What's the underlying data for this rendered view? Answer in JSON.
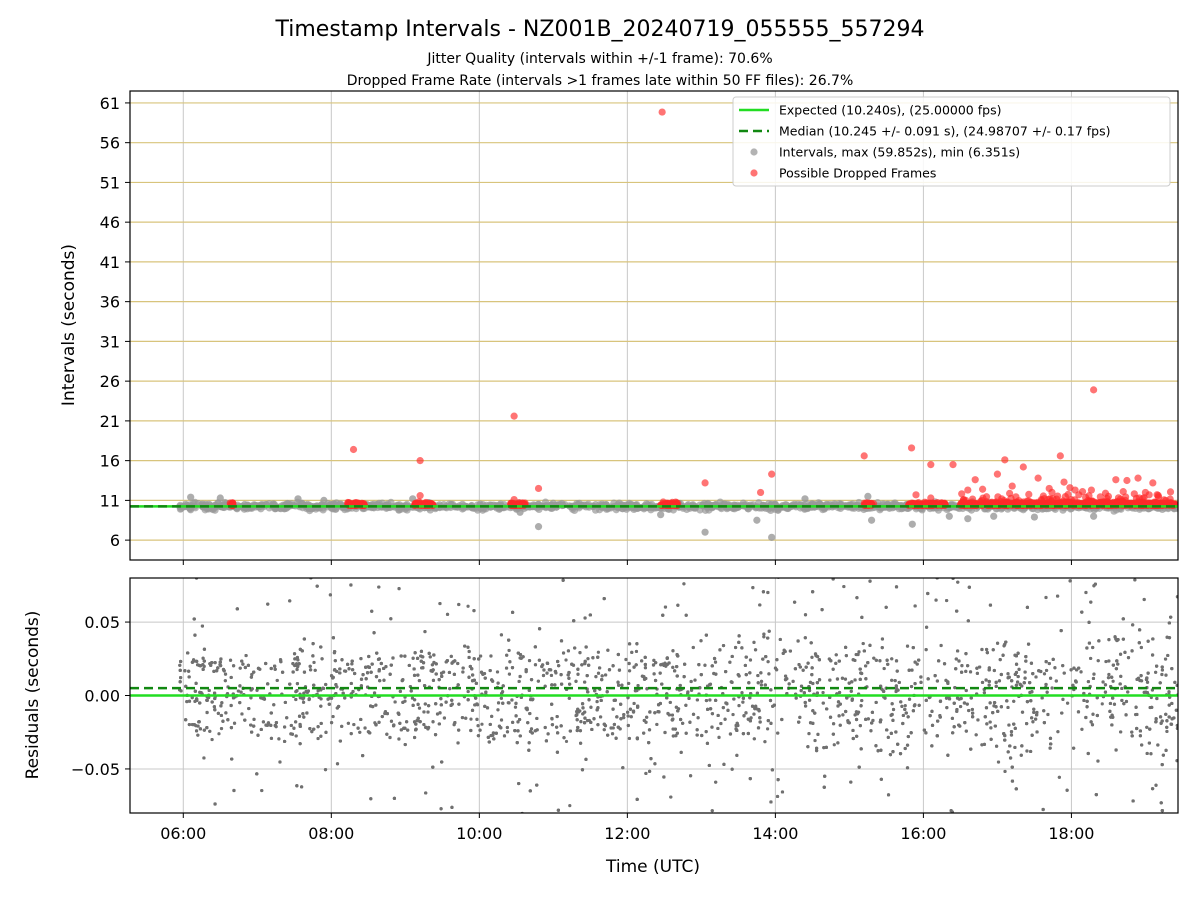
{
  "title": "Timestamp Intervals - NZ001B_20240719_055555_557294",
  "subtitle_1": "Jitter Quality (intervals within +/-1 frame): 70.6%",
  "subtitle_2": "Dropped Frame Rate (intervals >1 frames late within 50 FF files): 26.7%",
  "colors": {
    "expected": "#22dd22",
    "median": "#118811",
    "intervals": "#999999",
    "dropped": "#ff2a2a",
    "hgrid_top": "#d8c47c",
    "vgrid": "#c8c8c8",
    "residuals": "#707070"
  },
  "chart_data": [
    {
      "type": "scatter",
      "panel": "top",
      "ylabel": "Intervals (seconds)",
      "y_ticks": [
        6,
        11,
        16,
        21,
        26,
        31,
        36,
        41,
        46,
        51,
        56,
        61
      ],
      "y_tick_labels": [
        "6",
        "11",
        "16",
        "21",
        "26",
        "31",
        "36",
        "41",
        "46",
        "51",
        "56",
        "61"
      ],
      "ylim": [
        3.5,
        62.5
      ],
      "xlim_hours": [
        5.28,
        19.44
      ],
      "grid": true,
      "legend_position": "top-right",
      "expected_interval": 10.24,
      "median_interval": 10.245,
      "legend": [
        {
          "key": "expected",
          "label": "Expected (10.240s), (25.00000 fps)",
          "style": "solid-line"
        },
        {
          "key": "median",
          "label": "Median (10.245 +/- 0.091 s), (24.98707 +/- 0.17 fps)",
          "style": "dashed-line"
        },
        {
          "key": "intervals",
          "label": "Intervals, max (59.852s), min (6.351s)",
          "style": "marker"
        },
        {
          "key": "dropped",
          "label": "Possible Dropped Frames",
          "style": "marker"
        }
      ],
      "series": [
        {
          "name": "Intervals",
          "x_hours": [
            6.1,
            6.5,
            7.55,
            7.9,
            9.1,
            10.55,
            10.8,
            12.45,
            13.05,
            13.75,
            13.95,
            14.4,
            15.25,
            15.3,
            15.85,
            16.35,
            16.6,
            16.95,
            17.5,
            18.3
          ],
          "y": [
            11.4,
            11.3,
            11.2,
            11.0,
            11.2,
            9.5,
            7.7,
            9.2,
            7.0,
            8.5,
            6.35,
            11.2,
            11.5,
            8.5,
            8.0,
            9.0,
            8.7,
            9.0,
            8.9,
            9.0
          ]
        },
        {
          "name": "Possible Dropped Frames",
          "x_hours": [
            8.3,
            9.2,
            9.2,
            10.47,
            10.47,
            10.8,
            12.47,
            13.05,
            13.8,
            13.95,
            15.2,
            15.84,
            15.9,
            16.1,
            16.1,
            16.4,
            16.6,
            16.7,
            16.8,
            17.0,
            17.1,
            17.2,
            17.35,
            17.55,
            17.7,
            17.85,
            17.9,
            17.98,
            18.05,
            18.1,
            18.15,
            18.27,
            18.3,
            18.5,
            18.6,
            18.7,
            18.75,
            18.9,
            19.0,
            19.05,
            19.1
          ],
          "y": [
            17.4,
            16.0,
            11.6,
            21.6,
            11.1,
            12.5,
            59.85,
            13.2,
            12.0,
            14.3,
            16.6,
            17.6,
            11.7,
            15.5,
            11.3,
            15.5,
            12.3,
            13.6,
            12.4,
            14.3,
            16.1,
            12.8,
            15.2,
            13.8,
            12.5,
            16.6,
            13.3,
            12.6,
            12.3,
            11.7,
            12.1,
            12.3,
            24.9,
            11.5,
            13.6,
            12.1,
            13.5,
            13.8,
            12.0,
            11.7,
            13.2
          ],
          "clusters_x_hours": [
            [
              6.62,
              6.67
            ],
            [
              8.22,
              8.45
            ],
            [
              9.12,
              9.38
            ],
            [
              10.42,
              10.62
            ],
            [
              12.45,
              12.68
            ],
            [
              15.2,
              15.33
            ],
            [
              15.8,
              16.3
            ],
            [
              16.5,
              19.4
            ]
          ]
        }
      ]
    },
    {
      "type": "scatter",
      "panel": "bottom",
      "ylabel": "Residuals (seconds)",
      "xlabel": "Time (UTC)",
      "x_ticks_hours": [
        6,
        8,
        10,
        12,
        14,
        16,
        18
      ],
      "x_tick_labels": [
        "06:00",
        "08:00",
        "10:00",
        "12:00",
        "14:00",
        "16:00",
        "18:00"
      ],
      "y_ticks": [
        -0.05,
        0.0,
        0.05
      ],
      "y_tick_labels": [
        "−0.05",
        "0.00",
        "0.05"
      ],
      "ylim": [
        -0.08,
        0.08
      ],
      "xlim_hours": [
        5.28,
        19.44
      ],
      "grid": true,
      "expected_residual": 0.0,
      "median_residual": 0.005,
      "series": [
        {
          "name": "Residuals",
          "x_start_hours": 5.95,
          "x_end_hours": 19.44,
          "approx_count": 4400,
          "band_centers": [
            0.02,
            0.0,
            -0.02
          ]
        }
      ]
    }
  ]
}
